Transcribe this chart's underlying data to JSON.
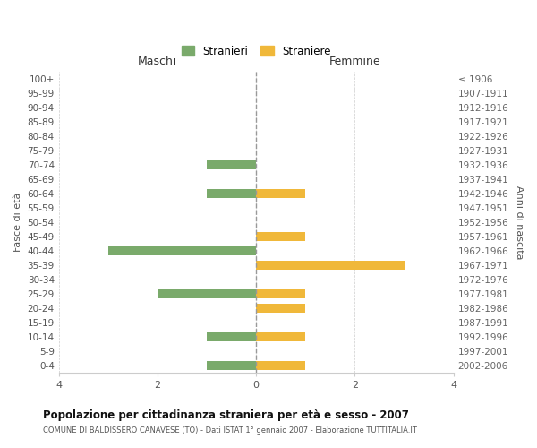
{
  "age_groups": [
    "100+",
    "95-99",
    "90-94",
    "85-89",
    "80-84",
    "75-79",
    "70-74",
    "65-69",
    "60-64",
    "55-59",
    "50-54",
    "45-49",
    "40-44",
    "35-39",
    "30-34",
    "25-29",
    "20-24",
    "15-19",
    "10-14",
    "5-9",
    "0-4"
  ],
  "birth_years": [
    "≤ 1906",
    "1907-1911",
    "1912-1916",
    "1917-1921",
    "1922-1926",
    "1927-1931",
    "1932-1936",
    "1937-1941",
    "1942-1946",
    "1947-1951",
    "1952-1956",
    "1957-1961",
    "1962-1966",
    "1967-1971",
    "1972-1976",
    "1977-1981",
    "1982-1986",
    "1987-1991",
    "1992-1996",
    "1997-2001",
    "2002-2006"
  ],
  "maschi": [
    0,
    0,
    0,
    0,
    0,
    0,
    1,
    0,
    1,
    0,
    0,
    0,
    3,
    0,
    0,
    2,
    0,
    0,
    1,
    0,
    1
  ],
  "femmine": [
    0,
    0,
    0,
    0,
    0,
    0,
    0,
    0,
    1,
    0,
    0,
    1,
    0,
    3,
    0,
    1,
    1,
    0,
    1,
    0,
    1
  ],
  "color_maschi": "#7aaa6b",
  "color_femmine": "#f0b83a",
  "title": "Popolazione per cittadinanza straniera per età e sesso - 2007",
  "subtitle": "COMUNE DI BALDISSERO CANAVESE (TO) - Dati ISTAT 1° gennaio 2007 - Elaborazione TUTTITALIA.IT",
  "ylabel_left": "Fasce di età",
  "ylabel_right": "Anni di nascita",
  "xlabel_left": "Maschi",
  "xlabel_right": "Femmine",
  "legend_maschi": "Stranieri",
  "legend_femmine": "Straniere",
  "xlim": 4,
  "background_color": "#ffffff",
  "grid_color": "#cccccc",
  "dashed_line_color": "#999999"
}
